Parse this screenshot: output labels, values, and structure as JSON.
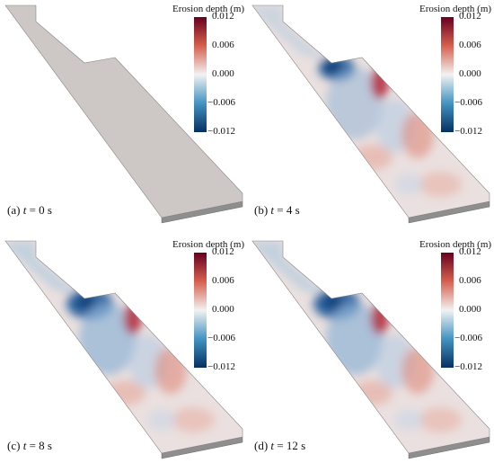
{
  "colorbar": {
    "title": "Erosion depth (m)",
    "ticks": [
      "0.012",
      "0.006",
      "0.000",
      "−0.006",
      "−0.012"
    ],
    "colors": {
      "high": "#67001f",
      "mid_high": "#d6604d",
      "zero": "#f2f2f2",
      "mid_low": "#4393c3",
      "low": "#053061"
    }
  },
  "panels": [
    {
      "label": "(a)",
      "var": "t",
      "eq": " = 0 s",
      "state": "initial"
    },
    {
      "label": "(b)",
      "var": "t",
      "eq": " = 4 s",
      "state": "eroded"
    },
    {
      "label": "(c)",
      "var": "t",
      "eq": " = 8 s",
      "state": "eroded"
    },
    {
      "label": "(d)",
      "var": "t",
      "eq": " = 12 s",
      "state": "eroded"
    }
  ]
}
